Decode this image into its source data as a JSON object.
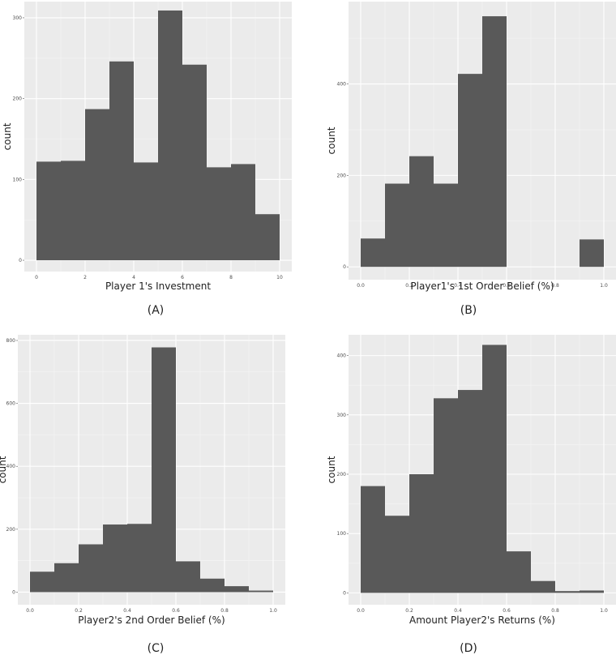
{
  "colors": {
    "panel_bg": "#ebebeb",
    "grid_major": "#ffffff",
    "grid_minor": "#f5f5f5",
    "bar": "#595959"
  },
  "chart_data": [
    {
      "type": "bar",
      "panel_label": "(A)",
      "xlabel": "Player 1's Investment",
      "ylabel": "count",
      "xlim": [
        -0.5,
        10.5
      ],
      "ylim": [
        -14,
        320
      ],
      "xticks": [
        0,
        2,
        4,
        6,
        8,
        10
      ],
      "xtick_labels": [
        "0",
        "2",
        "4",
        "6",
        "8",
        "10"
      ],
      "yticks": [
        0,
        100,
        200,
        300
      ],
      "ytick_labels": [
        "0",
        "100",
        "200",
        "300"
      ],
      "bin_edges": [
        0,
        1,
        2,
        3,
        4,
        5,
        6,
        7,
        8,
        9,
        10
      ],
      "values": [
        122,
        123,
        187,
        246,
        121,
        309,
        242,
        115,
        119,
        57
      ]
    },
    {
      "type": "bar",
      "panel_label": "(B)",
      "xlabel": "Player1's 1st Order Belief (%)",
      "ylabel": "count",
      "xlim": [
        -0.05,
        1.05
      ],
      "ylim": [
        -28,
        580
      ],
      "xticks": [
        0,
        0.2,
        0.4,
        0.6,
        0.8,
        1.0
      ],
      "xtick_labels": [
        "0.0",
        "0.2",
        "0.4",
        "0.6",
        "0.8",
        "1.0"
      ],
      "yticks": [
        0,
        200,
        400
      ],
      "ytick_labels": [
        "0",
        "200",
        "400"
      ],
      "bin_edges": [
        0,
        0.1,
        0.2,
        0.3,
        0.4,
        0.5,
        0.6,
        0.7,
        0.8,
        0.9,
        1.0
      ],
      "values": [
        62,
        182,
        242,
        182,
        422,
        548,
        0,
        0,
        0,
        60
      ]
    },
    {
      "type": "bar",
      "panel_label": "(C)",
      "xlabel": "Player2's 2nd Order Belief (%)",
      "ylabel": "count",
      "xlim": [
        -0.05,
        1.05
      ],
      "ylim": [
        -40,
        818
      ],
      "xticks": [
        0,
        0.2,
        0.4,
        0.6,
        0.8,
        1.0
      ],
      "xtick_labels": [
        "0.0",
        "0.2",
        "0.4",
        "0.6",
        "0.8",
        "1.0"
      ],
      "yticks": [
        0,
        200,
        400,
        600,
        800
      ],
      "ytick_labels": [
        "0",
        "200",
        "400",
        "600",
        "800"
      ],
      "bin_edges": [
        0,
        0.1,
        0.2,
        0.3,
        0.4,
        0.5,
        0.6,
        0.7,
        0.8,
        0.9,
        1.0
      ],
      "values": [
        65,
        92,
        152,
        215,
        217,
        778,
        98,
        43,
        19,
        5
      ]
    },
    {
      "type": "bar",
      "panel_label": "(D)",
      "xlabel": "Amount Player2's Returns (%)",
      "ylabel": "count",
      "xlim": [
        -0.05,
        1.05
      ],
      "ylim": [
        -20,
        435
      ],
      "xticks": [
        0,
        0.2,
        0.4,
        0.6,
        0.8,
        1.0
      ],
      "xtick_labels": [
        "0.0",
        "0.2",
        "0.4",
        "0.6",
        "0.8",
        "1.0"
      ],
      "yticks": [
        0,
        100,
        200,
        300,
        400
      ],
      "ytick_labels": [
        "0",
        "100",
        "200",
        "300",
        "400"
      ],
      "bin_edges": [
        0,
        0.1,
        0.2,
        0.3,
        0.4,
        0.5,
        0.6,
        0.7,
        0.8,
        0.9,
        1.0
      ],
      "values": [
        180,
        130,
        200,
        328,
        342,
        418,
        70,
        20,
        3,
        4
      ]
    }
  ]
}
